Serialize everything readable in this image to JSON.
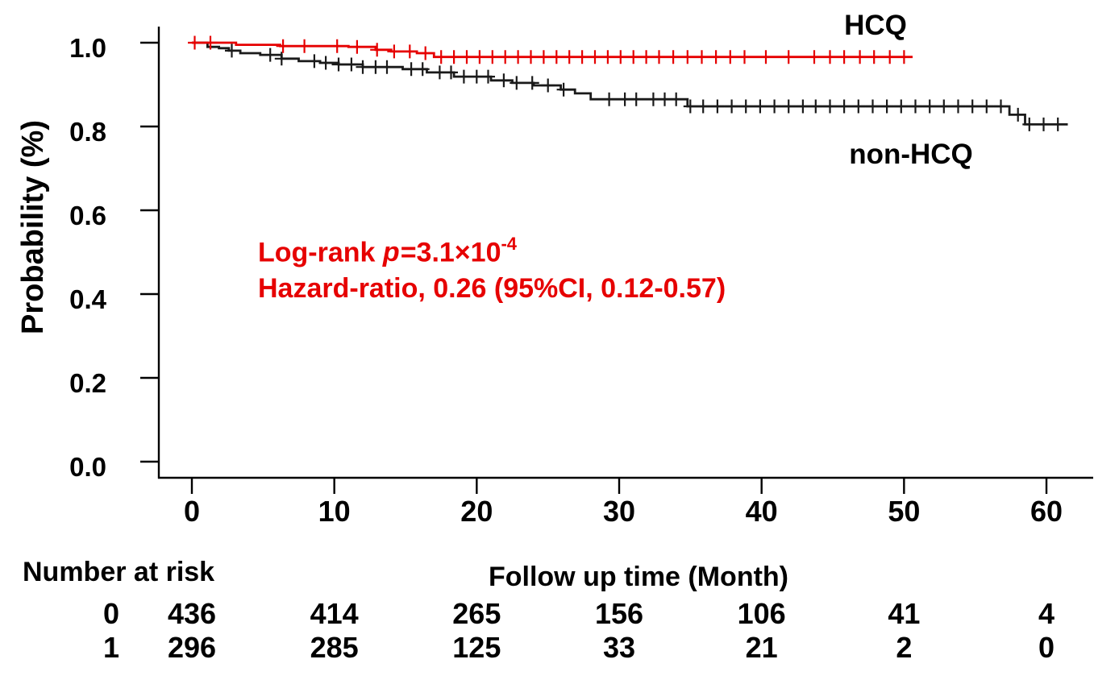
{
  "series_labels": {
    "hcq": "HCQ",
    "non_hcq": "non-HCQ"
  },
  "annotations": {
    "logrank_prefix": "Log-rank ",
    "logrank_p": "p",
    "logrank_value": "=3.1×10",
    "logrank_exponent": "-4",
    "hazard_ratio": "Hazard-ratio, 0.26 (95%CI, 0.12-0.57)"
  },
  "axes": {
    "ylabel": "Probability (%)",
    "xlabel": "Follow up time (Month)",
    "y_ticks": [
      "1.0",
      "0.8",
      "0.6",
      "0.4",
      "0.2",
      "0.0"
    ],
    "y_tick_values": [
      1.0,
      0.8,
      0.6,
      0.4,
      0.2,
      0.0
    ],
    "x_ticks": [
      "0",
      "10",
      "20",
      "30",
      "40",
      "50",
      "60"
    ],
    "x_tick_values": [
      0,
      10,
      20,
      30,
      40,
      50,
      60
    ]
  },
  "risk_table": {
    "title": "Number at risk",
    "times": [
      0,
      10,
      20,
      30,
      40,
      50,
      60
    ],
    "rows": [
      {
        "label": "0",
        "values": [
          "436",
          "414",
          "265",
          "156",
          "106",
          "41",
          "4"
        ]
      },
      {
        "label": "1",
        "values": [
          "296",
          "285",
          "125",
          "33",
          "21",
          "2",
          "0"
        ]
      }
    ]
  },
  "chart_data": {
    "type": "line",
    "subtype": "kaplan-meier-step",
    "title": "",
    "xlabel": "Follow up time (Month)",
    "ylabel": "Probability (%)",
    "xlim": [
      0,
      62
    ],
    "ylim": [
      0.0,
      1.04
    ],
    "grid": false,
    "stats": {
      "logrank_p": "3.1e-4",
      "hazard_ratio": 0.26,
      "ci95_low": 0.12,
      "ci95_high": 0.57
    },
    "series": [
      {
        "name": "non-HCQ",
        "group_code": "0",
        "color": "#1a1a1a",
        "end_t": 61.5,
        "steps": [
          [
            0,
            1.0
          ],
          [
            1.1,
            0.99
          ],
          [
            1.9,
            0.987
          ],
          [
            2.6,
            0.981
          ],
          [
            3.4,
            0.975
          ],
          [
            4.8,
            0.971
          ],
          [
            6.3,
            0.962
          ],
          [
            7.5,
            0.956
          ],
          [
            9.0,
            0.952
          ],
          [
            10.3,
            0.948
          ],
          [
            12.0,
            0.942
          ],
          [
            14.8,
            0.937
          ],
          [
            16.5,
            0.929
          ],
          [
            18.4,
            0.919
          ],
          [
            21.0,
            0.91
          ],
          [
            22.5,
            0.904
          ],
          [
            24.0,
            0.898
          ],
          [
            25.9,
            0.888
          ],
          [
            26.9,
            0.879
          ],
          [
            28.0,
            0.865
          ],
          [
            34.8,
            0.848
          ],
          [
            57.4,
            0.828
          ],
          [
            58.5,
            0.805
          ]
        ],
        "censor_t": [
          2.8,
          5.5,
          6.3,
          8.6,
          9.4,
          10.3,
          11.2,
          12.0,
          12.9,
          13.7,
          15.4,
          16.2,
          17.4,
          18.2,
          19.1,
          20.0,
          20.8,
          21.9,
          22.8,
          23.9,
          25.0,
          26.1,
          29.3,
          30.4,
          31.2,
          32.4,
          33.2,
          34.0,
          35.0,
          35.9,
          36.9,
          37.9,
          38.9,
          39.9,
          40.9,
          41.9,
          42.9,
          43.8,
          44.8,
          45.8,
          46.8,
          47.8,
          48.8,
          49.8,
          50.8,
          51.8,
          52.8,
          53.8,
          54.8,
          55.8,
          56.8,
          58.0,
          58.8,
          59.8,
          60.8
        ],
        "number_at_risk": [
          436,
          414,
          265,
          156,
          106,
          41,
          4
        ]
      },
      {
        "name": "HCQ",
        "group_code": "1",
        "color": "#e60000",
        "end_t": 50.6,
        "steps": [
          [
            0,
            1.0
          ],
          [
            3.1,
            0.995
          ],
          [
            6.2,
            0.992
          ],
          [
            11.0,
            0.99
          ],
          [
            12.9,
            0.983
          ],
          [
            14.0,
            0.979
          ],
          [
            15.8,
            0.975
          ],
          [
            17.0,
            0.966
          ]
        ],
        "censor_t": [
          0.2,
          1.3,
          6.4,
          7.9,
          10.2,
          11.6,
          13.0,
          14.2,
          15.3,
          16.4,
          17.5,
          18.4,
          19.3,
          20.2,
          21.1,
          22.0,
          22.9,
          23.8,
          24.7,
          25.6,
          26.5,
          27.4,
          28.3,
          29.2,
          30.1,
          31.0,
          31.9,
          32.8,
          33.8,
          34.8,
          35.8,
          36.8,
          37.8,
          38.8,
          40.3,
          41.9,
          43.7,
          44.8,
          45.8,
          46.9,
          47.9,
          49.0,
          50.0
        ],
        "number_at_risk": [
          296,
          285,
          125,
          33,
          21,
          2,
          0
        ]
      }
    ],
    "legend_position": "labels-on-plot",
    "axis_color": "#000000"
  }
}
